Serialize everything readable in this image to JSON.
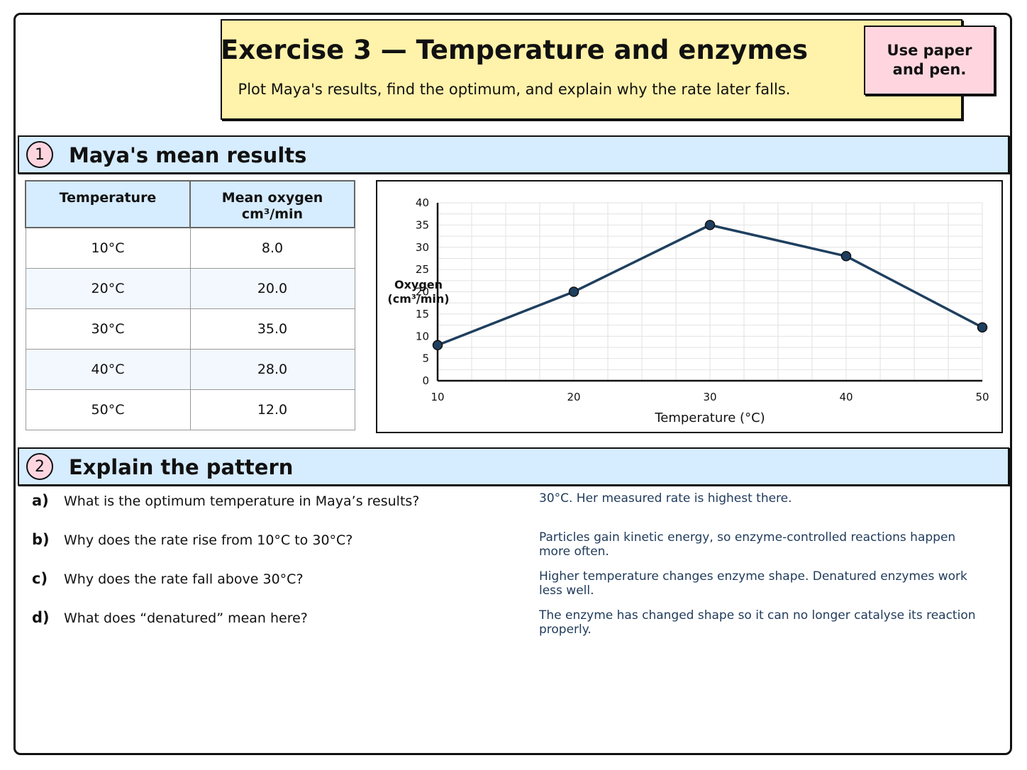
{
  "header": {
    "title": "Exercise 3 — Temperature and enzymes",
    "subtitle": "Plot Maya's results, find the optimum, and explain why the rate later falls.",
    "note": "Use paper and pen."
  },
  "section1": {
    "number": "1",
    "title": "Maya's mean results"
  },
  "table": {
    "headers": [
      "Temperature",
      "Mean oxygen cm³/min"
    ],
    "rows": [
      [
        "10°C",
        "8.0"
      ],
      [
        "20°C",
        "20.0"
      ],
      [
        "30°C",
        "35.0"
      ],
      [
        "40°C",
        "28.0"
      ],
      [
        "50°C",
        "12.0"
      ]
    ]
  },
  "chart_data": {
    "type": "line",
    "x": [
      10,
      20,
      30,
      40,
      50
    ],
    "series": [
      {
        "values": [
          8,
          20,
          35,
          28,
          12
        ]
      }
    ],
    "xlabel": "Temperature (°C)",
    "ylabel": "Oxygen\n(cm³/min)",
    "xlim": [
      10,
      50
    ],
    "ylim": [
      0,
      40
    ],
    "xticks": [
      10,
      20,
      30,
      40,
      50
    ],
    "yticks": [
      0,
      5,
      10,
      15,
      20,
      25,
      30,
      35,
      40
    ],
    "grid": true,
    "line_color": "#1f3f5f",
    "marker_color": "#1f3f5f"
  },
  "section2": {
    "number": "2",
    "title": "Explain the pattern"
  },
  "questions": [
    {
      "letter": "a)",
      "text": "What is the optimum temperature in Maya’s results?",
      "answer": "30°C. Her measured rate is highest there."
    },
    {
      "letter": "b)",
      "text": "Why does the rate rise from 10°C to 30°C?",
      "answer": "Particles gain kinetic energy, so enzyme-controlled reactions happen more often."
    },
    {
      "letter": "c)",
      "text": "Why does the rate fall above 30°C?",
      "answer": "Higher temperature changes enzyme shape. Denatured enzymes work less well."
    },
    {
      "letter": "d)",
      "text": "What does “denatured” mean here?",
      "answer": "The enzyme has changed shape so it can no longer catalyse its reaction properly."
    }
  ]
}
